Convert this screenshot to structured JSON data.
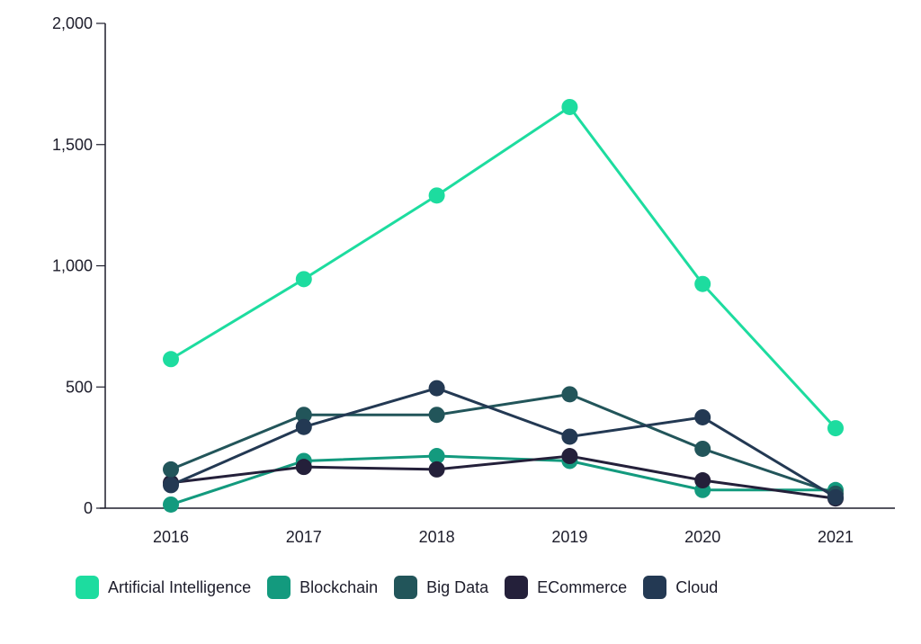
{
  "chart_data": {
    "type": "line",
    "title": "",
    "xlabel": "",
    "ylabel": "",
    "categories": [
      "2016",
      "2017",
      "2018",
      "2019",
      "2020",
      "2021"
    ],
    "ylim": [
      0,
      2000
    ],
    "yticks": [
      0,
      500,
      1000,
      1500,
      2000
    ],
    "ytick_labels": [
      "0",
      "500",
      "1,000",
      "1,500",
      "2,000"
    ],
    "grid": false,
    "legend_position": "bottom",
    "series": [
      {
        "name": "Artificial Intelligence",
        "color": "#1ddc9f",
        "values": [
          615,
          945,
          1290,
          1655,
          925,
          330
        ]
      },
      {
        "name": "Blockchain",
        "color": "#139a7e",
        "values": [
          15,
          195,
          215,
          195,
          75,
          75
        ]
      },
      {
        "name": "Big Data",
        "color": "#22555a",
        "values": [
          160,
          385,
          385,
          470,
          245,
          60
        ]
      },
      {
        "name": "ECommerce",
        "color": "#24203a",
        "values": [
          105,
          170,
          160,
          215,
          115,
          40
        ]
      },
      {
        "name": "Cloud",
        "color": "#233953",
        "values": [
          95,
          335,
          495,
          295,
          375,
          45
        ]
      }
    ]
  }
}
